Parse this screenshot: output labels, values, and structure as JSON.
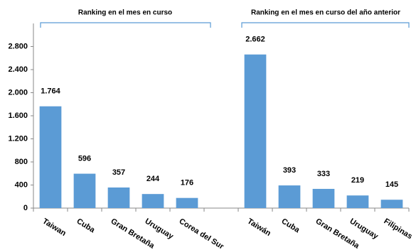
{
  "chart_data": {
    "type": "bar",
    "annotations": [
      {
        "text": "Ranking en el mes en curso"
      },
      {
        "text": "Ranking en el mes en curso del año anterior"
      }
    ],
    "categories": [
      "Taiwan",
      "Cuba",
      "Gran Bretaña",
      "Uruguay",
      "Corea del Sur",
      null,
      "Taiwán",
      "Cuba",
      "Gran Bretaña",
      "Uruguay",
      "Filipinas"
    ],
    "values": [
      1764,
      596,
      357,
      244,
      176,
      null,
      2662,
      393,
      333,
      219,
      145
    ],
    "value_labels": [
      "1.764",
      "596",
      "357",
      "244",
      "176",
      null,
      "2.662",
      "393",
      "333",
      "219",
      "145"
    ],
    "color": "#5b9bd5",
    "ylim": [
      0,
      3200
    ],
    "yticks": [
      0,
      400,
      800,
      {
        "value": 1200,
        "label": "1.200"
      },
      {
        "value": 1600,
        "label": "1.600"
      },
      {
        "value": 2000,
        "label": "2.000"
      },
      {
        "value": 2400,
        "label": "2.400"
      },
      {
        "value": 2800,
        "label": "2.800"
      }
    ],
    "grid": false
  }
}
